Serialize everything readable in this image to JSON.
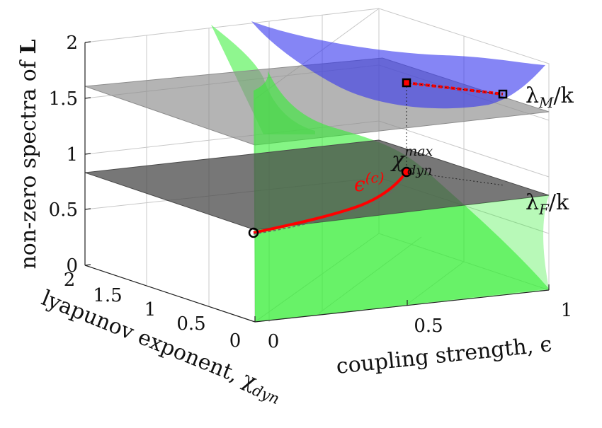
{
  "chart_data": {
    "type": "surface3d",
    "axes": {
      "x": {
        "label": "coupling strength, ϵ",
        "range": [
          0,
          1
        ],
        "ticks": [
          "0",
          "0.5",
          "1"
        ]
      },
      "y": {
        "label_main": "lyapunov exponent, χ",
        "label_sub": "dyn",
        "range": [
          0,
          2
        ],
        "ticks": [
          "0",
          "0.5",
          "1",
          "1.5",
          "2"
        ]
      },
      "z": {
        "label_main": "non-zero spectra of ",
        "label_bold": "L",
        "range": [
          0,
          2
        ],
        "ticks": [
          "0",
          "0.5",
          "1",
          "1.5",
          "2"
        ]
      }
    },
    "grid": true,
    "planes": [
      {
        "name_main": "λ",
        "name_sub": "F",
        "name_tail": "/k",
        "z": 0.78,
        "color": "#4a4a4a"
      },
      {
        "name_main": "λ",
        "name_sub": "M",
        "name_tail": "/k",
        "z": 1.57,
        "color": "#8c8c8c"
      }
    ],
    "surfaces": [
      {
        "color": "#33ee33",
        "description_key": "green"
      },
      {
        "color": "#3333ee",
        "description_key": "blue"
      }
    ],
    "curve_label": {
      "main": "ϵ",
      "sup": "(c)",
      "color": "#ff0000"
    },
    "point_label": {
      "main": "χ",
      "sup": "max",
      "sub": "dyn"
    },
    "curve_points": [
      {
        "x": 0.0,
        "y": 0.0,
        "z": 0.26
      },
      {
        "x": 0.1,
        "y": 0.05,
        "z": 0.38
      },
      {
        "x": 0.2,
        "y": 0.1,
        "z": 0.5
      },
      {
        "x": 0.3,
        "y": 0.2,
        "z": 0.62
      },
      {
        "x": 0.4,
        "y": 0.35,
        "z": 0.72
      },
      {
        "x": 0.5,
        "y": 0.5,
        "z": 0.79
      }
    ],
    "upper_segment": [
      {
        "x": 0.5,
        "y": 0.5,
        "z": 1.57
      },
      {
        "x": 1.0,
        "y": 0.5,
        "z": 1.5
      }
    ]
  }
}
